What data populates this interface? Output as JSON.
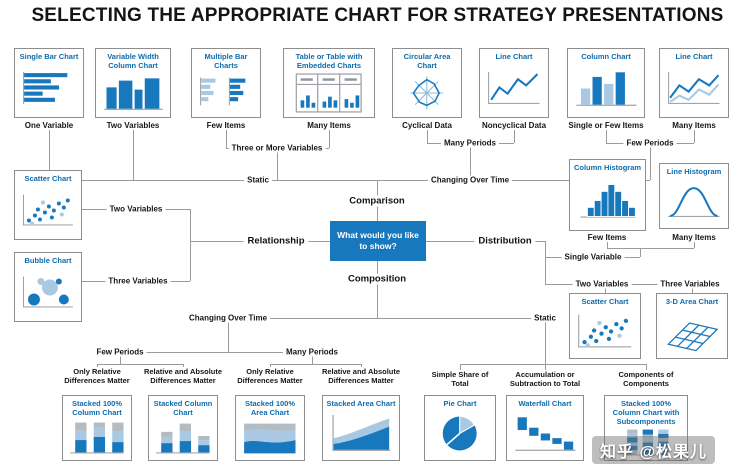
{
  "title": "SELECTING THE APPROPRIATE CHART FOR STRATEGY PRESENTATIONS",
  "center": {
    "question": "What would you like to show?"
  },
  "branch_labels": {
    "comparison": "Comparison",
    "relationship": "Relationship",
    "distribution": "Distribution",
    "composition": "Composition"
  },
  "connector_labels": {
    "three_or_more_variables": "Three or More Variables",
    "many_periods_top": "Many Periods",
    "few_periods_top": "Few Periods",
    "static_top": "Static",
    "changing_over_time_top": "Changing Over Time",
    "two_variables_left": "Two Variables",
    "three_variables_left": "Three Variables",
    "single_variable": "Single Variable",
    "two_variables_right": "Two Variables",
    "three_variables_right": "Three Variables",
    "changing_over_time_bottom": "Changing Over Time",
    "static_bottom": "Static",
    "few_periods_bottom": "Few Periods",
    "many_periods_bottom": "Many Periods",
    "only_relative_left": "Only Relative Differences Matter",
    "relative_absolute_left": "Relative and Absolute Differences Matter",
    "only_relative_right": "Only Relative Differences Matter",
    "relative_absolute_right": "Relative and Absolute Differences Matter",
    "simple_share": "Simple Share of Total",
    "accumulation": "Accumulation or Subtraction to Total",
    "components": "Components of Components"
  },
  "boxes": {
    "single_bar": {
      "title": "Single Bar Chart",
      "caption": "One Variable",
      "icon": "single-bar-chart-icon"
    },
    "variable_width": {
      "title": "Variable Width Column Chart",
      "caption": "Two Variables",
      "icon": "variable-width-column-chart-icon"
    },
    "multiple_bar": {
      "title": "Multiple Bar Charts",
      "caption": "Few Items",
      "icon": "multiple-bar-charts-icon"
    },
    "table_embedded": {
      "title": "Table or Table with Embedded Charts",
      "caption": "Many Items",
      "icon": "table-with-embedded-charts-icon"
    },
    "circular_area": {
      "title": "Circular Area Chart",
      "caption": "Cyclical Data",
      "icon": "circular-area-chart-icon"
    },
    "line_noncyclical": {
      "title": "Line Chart",
      "caption": "Noncyclical Data",
      "icon": "line-chart-icon"
    },
    "column": {
      "title": "Column Chart",
      "caption": "Single or Few Items",
      "icon": "column-chart-icon"
    },
    "line_many": {
      "title": "Line Chart",
      "caption": "Many Items",
      "icon": "multi-line-chart-icon"
    },
    "scatter_left": {
      "title": "Scatter Chart",
      "icon": "scatter-chart-icon"
    },
    "bubble": {
      "title": "Bubble Chart",
      "icon": "bubble-chart-icon"
    },
    "column_histogram": {
      "title": "Column Histogram",
      "caption": "Few Items",
      "icon": "column-histogram-icon"
    },
    "line_histogram": {
      "title": "Line Histogram",
      "caption": "Many Items",
      "icon": "line-histogram-icon"
    },
    "scatter_right": {
      "title": "Scatter Chart",
      "icon": "scatter-chart-icon"
    },
    "area_3d": {
      "title": "3-D Area Chart",
      "icon": "area-3d-chart-icon"
    },
    "stacked100_column": {
      "title": "Stacked 100% Column Chart",
      "icon": "stacked-100-column-chart-icon"
    },
    "stacked_column": {
      "title": "Stacked Column Chart",
      "icon": "stacked-column-chart-icon"
    },
    "stacked100_area": {
      "title": "Stacked 100% Area Chart",
      "icon": "stacked-100-area-chart-icon"
    },
    "stacked_area": {
      "title": "Stacked Area Chart",
      "icon": "stacked-area-chart-icon"
    },
    "pie": {
      "title": "Pie Chart",
      "icon": "pie-chart-icon"
    },
    "waterfall": {
      "title": "Waterfall Chart",
      "icon": "waterfall-chart-icon"
    },
    "stacked100_sub": {
      "title": "Stacked 100% Column Chart with Subcomponents",
      "icon": "stacked-100-column-subcomponents-icon"
    }
  },
  "watermark": "知乎 @松果儿",
  "colors": {
    "accent_blue": "#1878be",
    "light_blue": "#a9c9e2",
    "segment_gray": "#b4bcc3",
    "line_gray": "#9b9b9b"
  }
}
